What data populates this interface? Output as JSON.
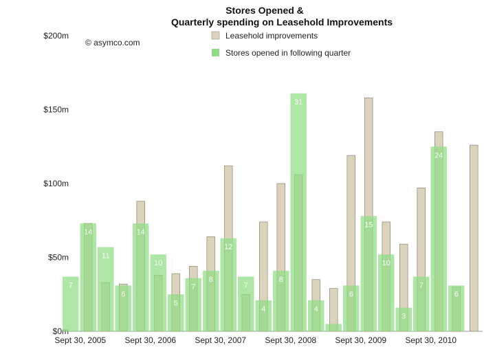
{
  "chart_data": {
    "type": "bar",
    "title_lines": [
      "Stores Opened &",
      "Quarterly spending on Leasehold Improvements"
    ],
    "credit": "© asymco.com",
    "ylim": [
      0,
      200
    ],
    "yticks": [
      {
        "value": 0,
        "label": "$0m"
      },
      {
        "value": 50,
        "label": "$50m"
      },
      {
        "value": 100,
        "label": "$100m"
      },
      {
        "value": 150,
        "label": "$150m"
      },
      {
        "value": 200,
        "label": "$200m"
      }
    ],
    "xtick_labels": [
      {
        "index": 0,
        "label": "Sept 30, 2005"
      },
      {
        "index": 4,
        "label": "Sept 30, 2006"
      },
      {
        "index": 8,
        "label": "Sept 30, 2007"
      },
      {
        "index": 12,
        "label": "Sept 30, 2008"
      },
      {
        "index": 16,
        "label": "Sept 30, 2009"
      },
      {
        "index": 20,
        "label": "Sept 30, 2010"
      }
    ],
    "legend_placement": "top-center",
    "series": [
      {
        "name": "Leasehold improvements",
        "color": "#dcd3bd",
        "values": [
          0,
          73,
          33,
          32,
          88,
          38,
          39,
          44,
          64,
          112,
          25,
          74,
          100,
          106,
          35,
          29,
          119,
          158,
          74,
          59,
          97,
          135,
          30,
          126
        ]
      },
      {
        "name": "Stores opened  in following quarter",
        "color": "#8fdc84",
        "values": [
          37,
          73,
          57,
          31,
          73,
          52,
          25,
          36,
          41,
          63,
          37,
          21,
          41,
          161,
          21,
          5,
          31,
          78,
          52,
          16,
          37,
          125,
          31,
          null
        ],
        "labels": [
          "7",
          "14",
          "11",
          "6",
          "14",
          "10",
          "5",
          "7",
          "8",
          "12",
          "7",
          "4",
          "8",
          "31",
          "4",
          "",
          "6",
          "15",
          "10",
          "3",
          "7",
          "24",
          "6",
          ""
        ]
      }
    ]
  }
}
